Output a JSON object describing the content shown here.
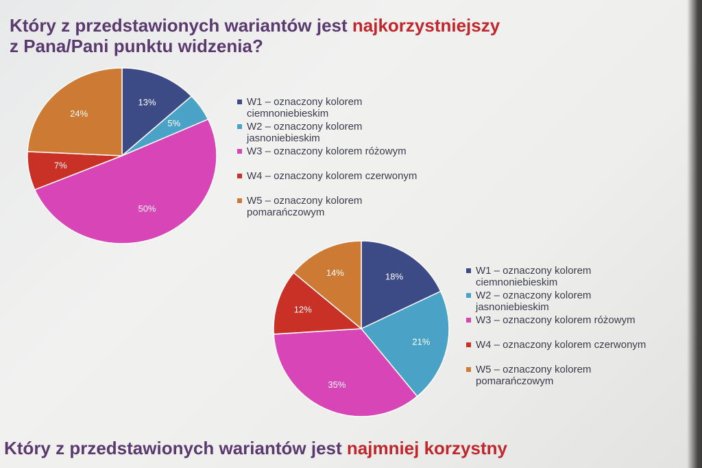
{
  "colors": {
    "W1": "#3c4a85",
    "W2": "#4aa3c7",
    "W3": "#d845b7",
    "W4": "#c93126",
    "W5": "#cd7a34"
  },
  "heading_top": {
    "pre": "Który z przedstawionych wariantów jest ",
    "highlight": "najkorzystniejszy",
    "line2": "z Pana/Pani punktu widzenia?"
  },
  "heading_bottom": {
    "pre": "Który z przedstawionych wariantów jest ",
    "highlight": "najmniej korzystny"
  },
  "chart_data": [
    {
      "type": "pie",
      "title": "",
      "categories": [
        "W1",
        "W2",
        "W3",
        "W4",
        "W5"
      ],
      "values": [
        13,
        5,
        50,
        7,
        24
      ],
      "value_labels": [
        "13%",
        "5%",
        "50%",
        "7%",
        "24%"
      ],
      "legend": [
        [
          "W1 – oznaczony kolorem",
          "ciemnoniebieskim"
        ],
        [
          "W2 – oznaczony kolorem",
          "jasnoniebieskim"
        ],
        [
          "W3 – oznaczony kolorem różowym"
        ],
        [
          "W4 – oznaczony kolorem czerwonym"
        ],
        [
          "W5 – oznaczony kolorem",
          "pomarańczowym"
        ]
      ],
      "legend_placement": "right"
    },
    {
      "type": "pie",
      "title": "",
      "categories": [
        "W1",
        "W2",
        "W3",
        "W4",
        "W5"
      ],
      "values": [
        18,
        21,
        35,
        12,
        14
      ],
      "value_labels": [
        "18%",
        "21%",
        "35%",
        "12%",
        "14%"
      ],
      "legend": [
        [
          "W1 – oznaczony kolorem",
          "ciemnoniebieskim"
        ],
        [
          "W2 – oznaczony kolorem",
          "jasnoniebieskim"
        ],
        [
          "W3 – oznaczony kolorem różowym"
        ],
        [
          "W4 – oznaczony kolorem czerwonym"
        ],
        [
          "W5 – oznaczony kolorem",
          "pomarańczowym"
        ]
      ],
      "legend_placement": "right"
    }
  ]
}
